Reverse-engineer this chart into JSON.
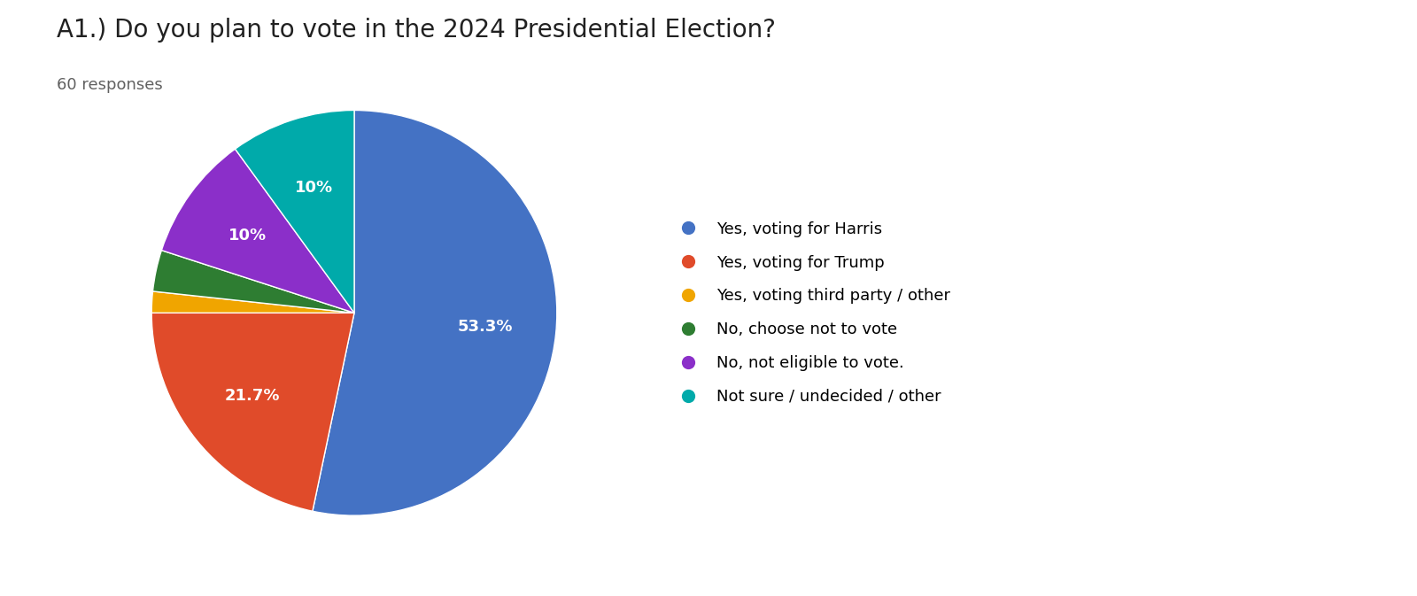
{
  "title": "A1.) Do you plan to vote in the 2024 Presidential Election?",
  "subtitle": "60 responses",
  "labels": [
    "Yes, voting for Harris",
    "Yes, voting for Trump",
    "Yes, voting third party / other",
    "No, choose not to vote",
    "No, not eligible to vote.",
    "Not sure / undecided / other"
  ],
  "values": [
    53.3,
    21.7,
    1.7,
    3.3,
    10.0,
    10.0
  ],
  "colors": [
    "#4472C4",
    "#E04B2A",
    "#F0A500",
    "#2E7D32",
    "#8B2FC9",
    "#00AAAA"
  ],
  "autopct_labels": [
    "53.3%",
    "21.7%",
    "",
    "",
    "10%",
    "10%"
  ],
  "background_color": "#ffffff",
  "title_fontsize": 20,
  "subtitle_fontsize": 13,
  "legend_fontsize": 13
}
